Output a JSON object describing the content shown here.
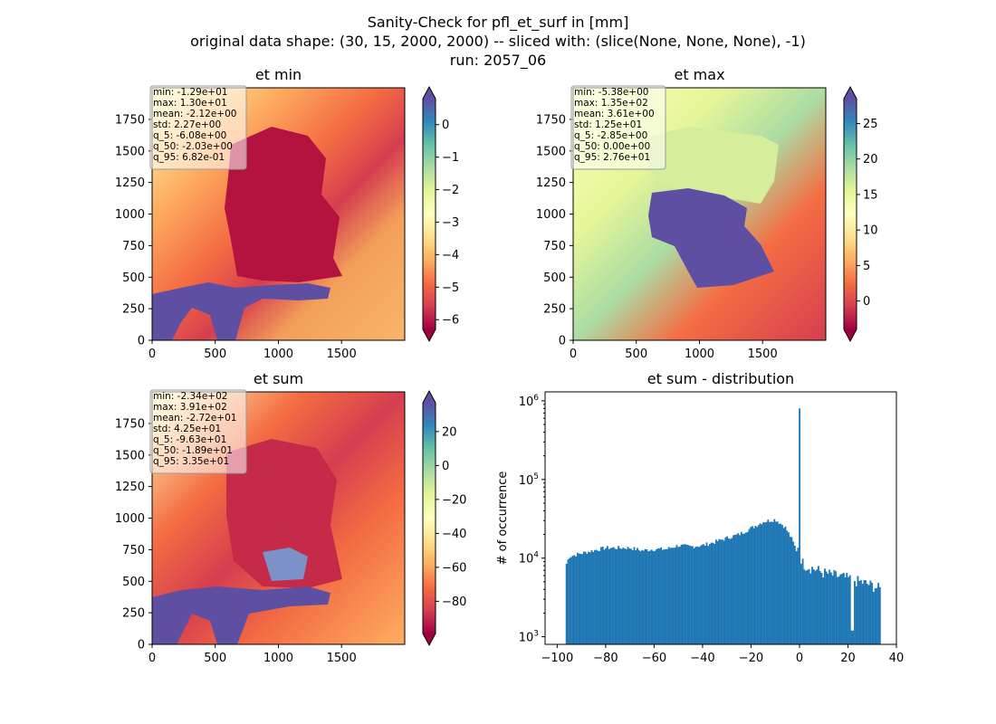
{
  "figure": {
    "title_lines": [
      "Sanity-Check for pfl_et_surf in [mm]",
      "original data shape: (30, 15, 2000, 2000) -- sliced with: (slice(None, None, None), -1)",
      "run: 2057_06"
    ]
  },
  "colors": {
    "spectral": [
      "#9e0142",
      "#d53e4f",
      "#f46d43",
      "#fdae61",
      "#fee08b",
      "#ffffbf",
      "#e6f598",
      "#abdda4",
      "#66c2a5",
      "#3288bd",
      "#5e4fa2"
    ],
    "hist_bar": "#1f77b4"
  },
  "chart_data": [
    {
      "type": "heatmap",
      "title": "et min",
      "colormap": "Spectral",
      "xlim": [
        0,
        2000
      ],
      "ylim": [
        0,
        2000
      ],
      "x_ticks": [
        "0",
        "500",
        "1000",
        "1500"
      ],
      "y_ticks": [
        "0",
        "250",
        "500",
        "750",
        "1000",
        "1250",
        "1500",
        "1750"
      ],
      "colorbar": {
        "vmin": -6.3,
        "vmax": 0.8,
        "ticks": [
          "0",
          "−1",
          "−2",
          "−3",
          "−4",
          "−5",
          "−6"
        ],
        "tick_values": [
          0,
          -1,
          -2,
          -3,
          -4,
          -5,
          -6
        ]
      },
      "stats": [
        "min: -1.29e+01",
        "max: 1.30e+01",
        "mean: -2.12e+00",
        "std: 2.27e+00",
        "q_5: -6.08e+00",
        "q_50: -2.03e+00",
        "q_95: 6.82e-01"
      ]
    },
    {
      "type": "heatmap",
      "title": "et max",
      "colormap": "Spectral",
      "xlim": [
        0,
        2000
      ],
      "ylim": [
        0,
        2000
      ],
      "x_ticks": [
        "0",
        "500",
        "1000",
        "1500"
      ],
      "y_ticks": [
        "0",
        "250",
        "500",
        "750",
        "1000",
        "1250",
        "1500",
        "1750"
      ],
      "colorbar": {
        "vmin": -4.0,
        "vmax": 28.5,
        "ticks": [
          "25",
          "20",
          "15",
          "10",
          "5",
          "0"
        ],
        "tick_values": [
          25,
          20,
          15,
          10,
          5,
          0
        ]
      },
      "stats": [
        "min: -5.38e+00",
        "max: 1.35e+02",
        "mean: 3.61e+00",
        "std: 1.25e+01",
        "q_5: -2.85e+00",
        "q_50: 0.00e+00",
        "q_95: 2.76e+01"
      ]
    },
    {
      "type": "heatmap",
      "title": "et sum",
      "colormap": "Spectral",
      "xlim": [
        0,
        2000
      ],
      "ylim": [
        0,
        2000
      ],
      "x_ticks": [
        "0",
        "500",
        "1000",
        "1500"
      ],
      "y_ticks": [
        "0",
        "250",
        "500",
        "750",
        "1000",
        "1250",
        "1500",
        "1750"
      ],
      "colorbar": {
        "vmin": -99,
        "vmax": 37,
        "ticks": [
          "20",
          "0",
          "−20",
          "−40",
          "−60",
          "−80"
        ],
        "tick_values": [
          20,
          0,
          -20,
          -40,
          -60,
          -80
        ]
      },
      "stats": [
        "min: -2.34e+02",
        "max: 3.91e+02",
        "mean: -2.72e+01",
        "std: 4.25e+01",
        "q_5: -9.63e+01",
        "q_50: -1.89e+01",
        "q_95: 3.35e+01"
      ]
    },
    {
      "type": "bar",
      "title": "et sum - distribution",
      "ylabel": "# of occurrence",
      "xlim": [
        -105,
        40
      ],
      "ylim": [
        800,
        1300000
      ],
      "yscale": "log",
      "x_ticks": [
        "−100",
        "−80",
        "−60",
        "−40",
        "−20",
        "0",
        "20",
        "40"
      ],
      "x_tick_values": [
        -100,
        -80,
        -60,
        -40,
        -20,
        0,
        20,
        40
      ],
      "y_ticks": [
        "10",
        "10",
        "10",
        "10"
      ],
      "y_tick_exponents": [
        "3",
        "4",
        "5",
        "6"
      ],
      "y_tick_values": [
        1000,
        10000,
        100000,
        1000000
      ],
      "bin_range": [
        -96.5,
        33.5
      ],
      "profile": [
        [
          -96.5,
          8000
        ],
        [
          -95,
          10500
        ],
        [
          -90,
          11500
        ],
        [
          -85,
          12500
        ],
        [
          -80,
          13500
        ],
        [
          -75,
          13500
        ],
        [
          -70,
          13500
        ],
        [
          -65,
          12500
        ],
        [
          -60,
          13000
        ],
        [
          -55,
          13000
        ],
        [
          -50,
          14500
        ],
        [
          -45,
          14000
        ],
        [
          -40,
          14500
        ],
        [
          -35,
          16000
        ],
        [
          -30,
          18000
        ],
        [
          -25,
          20000
        ],
        [
          -20,
          24000
        ],
        [
          -15,
          29000
        ],
        [
          -10,
          31000
        ],
        [
          -6,
          25000
        ],
        [
          -3,
          17000
        ],
        [
          -1,
          12000
        ],
        [
          -0.4,
          15000
        ],
        [
          0,
          800000
        ],
        [
          0.5,
          9000
        ],
        [
          3,
          8000
        ],
        [
          10,
          6500
        ],
        [
          20,
          5500
        ],
        [
          25,
          5000
        ],
        [
          30,
          4500
        ],
        [
          33.5,
          4000
        ]
      ],
      "spike_x": 0,
      "spike_value": 800000,
      "dip_x": 21.8,
      "dip_value": 1200
    }
  ]
}
